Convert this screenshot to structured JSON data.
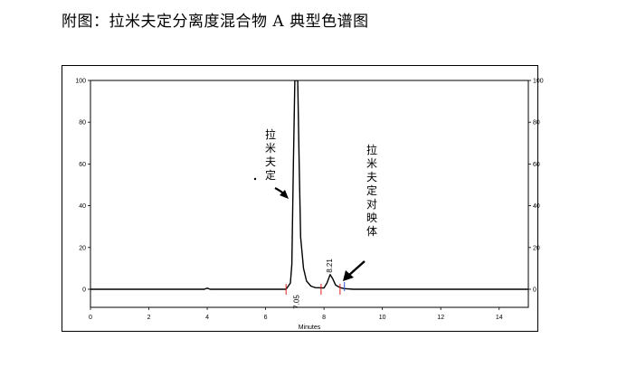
{
  "page": {
    "title": "附图：拉米夫定分离度混合物 A 典型色谱图"
  },
  "chart_data": {
    "type": "line",
    "xlabel": "Minutes",
    "ylabel": "",
    "xlim": [
      0,
      15
    ],
    "ylim": [
      -10,
      100
    ],
    "x_ticks": [
      "0",
      "2",
      "4",
      "6",
      "8",
      "10",
      "12",
      "14"
    ],
    "x_tick_values": [
      0,
      2,
      4,
      6,
      8,
      10,
      12,
      14
    ],
    "y_ticks_left": [
      "100",
      "80",
      "60",
      "40",
      "20",
      "0"
    ],
    "y_ticks_right": [
      "100",
      "80",
      "60",
      "40",
      "20",
      "0"
    ],
    "y_tick_values": [
      100,
      80,
      60,
      40,
      20,
      0
    ],
    "grid": false,
    "series": [
      {
        "x": [
          0,
          3.9,
          4.0,
          4.1,
          6.7,
          6.85,
          6.9,
          6.95,
          7.0,
          7.05,
          7.1,
          7.15,
          7.2,
          7.3,
          7.4,
          7.55,
          7.7,
          8.0,
          8.1,
          8.21,
          8.3,
          8.4,
          8.55,
          8.7,
          9.0,
          15
        ],
        "y": [
          0,
          0,
          0.5,
          0,
          0,
          3,
          12,
          60,
          100,
          100,
          100,
          60,
          25,
          10,
          4,
          1.5,
          0.8,
          0.6,
          3,
          7,
          5,
          2,
          0.8,
          0.3,
          0,
          0
        ]
      }
    ],
    "peak_labels": [
      {
        "x": 7.05,
        "label": "7.05"
      },
      {
        "x": 8.21,
        "label": "8.21"
      }
    ],
    "annotations": [
      {
        "text": "拉米夫定",
        "target_x": 7.05
      },
      {
        "text": "拉米夫定对映体",
        "target_x": 8.21
      }
    ],
    "integration_marks_red": [
      6.7,
      7.9,
      8.55
    ],
    "integration_mark_blue": 8.7,
    "colors": {
      "trace": "#000000",
      "mark_red": "#e02020",
      "mark_blue": "#3050d0"
    }
  }
}
